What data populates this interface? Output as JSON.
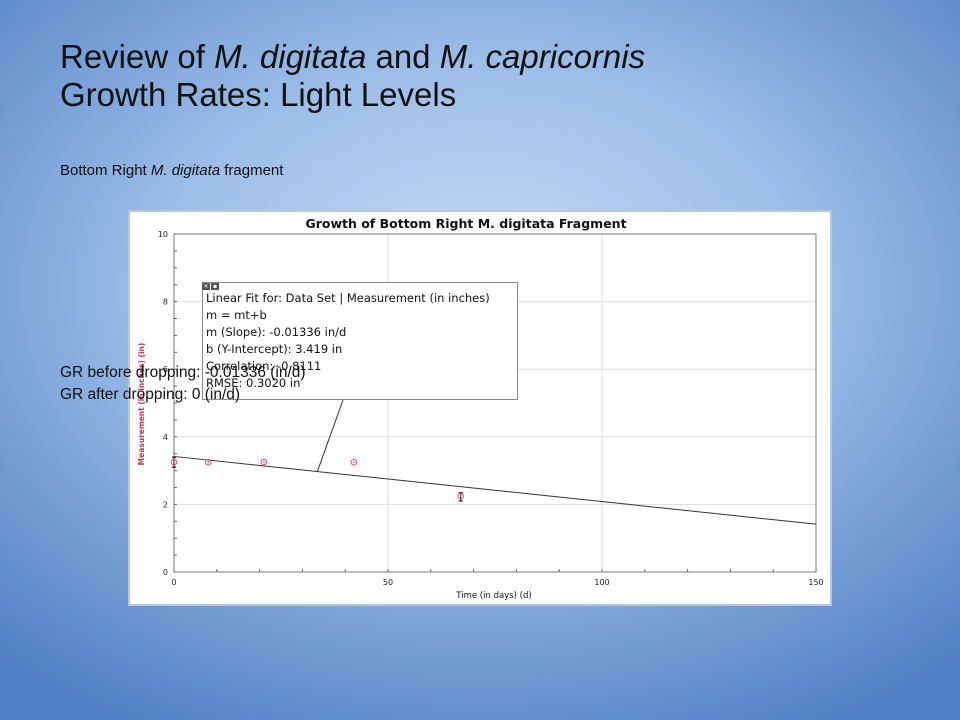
{
  "slide": {
    "title_line1_parts": [
      "Review of ",
      "M. digitata",
      " and ",
      "M. capricornis"
    ],
    "title_line2": "Growth Rates: Light Levels",
    "subtitle_parts": [
      "Bottom Right ",
      "M. digitata",
      " fragment"
    ],
    "gr_before": "GR before dropping: -0.01336 (in/d)",
    "gr_after": "GR after dropping: 0 (in/d)"
  },
  "chart_data": {
    "type": "scatter",
    "title": "Growth of Bottom Right M. digitata Fragment",
    "xlabel": "Time (in days) (d)",
    "ylabel": "Measurement (in inches) (in)",
    "xlim": [
      0,
      150
    ],
    "ylim": [
      0,
      10
    ],
    "xticks": [
      0,
      50,
      100,
      150
    ],
    "yticks": [
      0,
      2,
      4,
      6,
      8,
      10
    ],
    "grid": true,
    "series": [
      {
        "x": [
          0,
          8,
          21,
          42,
          67
        ],
        "y": [
          3.25,
          3.25,
          3.25,
          3.25,
          2.25
        ]
      }
    ],
    "error_bars": [
      {
        "x": 0,
        "low": 3.1,
        "high": 3.4
      },
      {
        "x": 67,
        "low": 2.1,
        "high": 2.35
      }
    ],
    "fit": {
      "slope": -0.01336,
      "intercept": 3.419
    },
    "fit_label": {
      "lines": [
        "Linear Fit for: Data Set | Measurement (in inches)",
        "m = mt+b",
        "m (Slope): -0.01336 in/d",
        "b (Y-Intercept): 3.419 in",
        "Correlation: -0.8111",
        "RMSE: 0.3020 in"
      ],
      "anchor_x": 33.5
    },
    "colors": {
      "points": "#e0507a",
      "fit_line": "#333333",
      "grid": "#dcdcdc",
      "box_border": "#8a8a8a"
    }
  }
}
